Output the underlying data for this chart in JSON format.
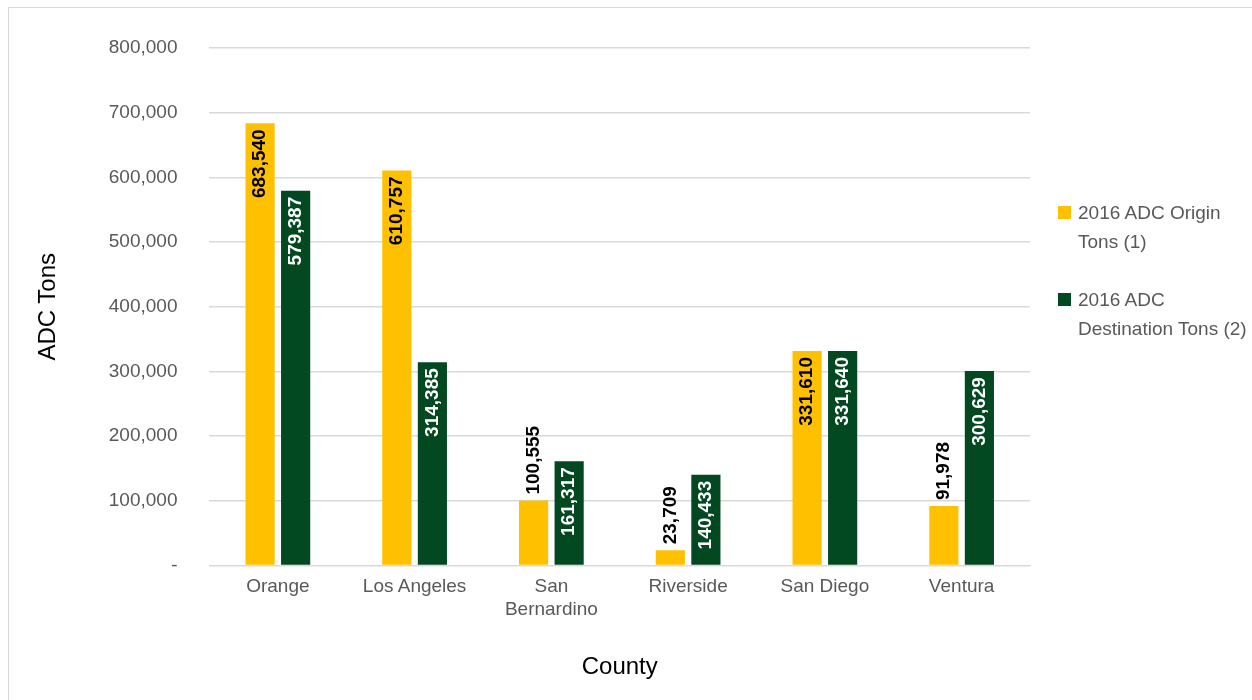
{
  "chart_data": {
    "type": "bar",
    "xlabel": "County",
    "ylabel": "ADC Tons",
    "categories": [
      "Orange",
      "Los Angeles",
      "San Bernardino",
      "Riverside",
      "San Diego",
      "Ventura"
    ],
    "series": [
      {
        "name": "2016 ADC Origin Tons (1)",
        "color": "#ffc000",
        "values": [
          683540,
          610757,
          100555,
          23709,
          331610,
          91978
        ],
        "value_labels": [
          "683,540",
          "610,757",
          "100,555",
          "23,709",
          "331,610",
          "91,978"
        ]
      },
      {
        "name": "2016 ADC Destination Tons (2)",
        "color": "#024820",
        "values": [
          579387,
          314385,
          161317,
          140433,
          331640,
          300629
        ],
        "value_labels": [
          "579,387",
          "314,385",
          "161,317",
          "140,433",
          "331,640",
          "300,629"
        ]
      }
    ],
    "ylim": [
      0,
      800000
    ],
    "yticks": [
      {
        "value": 0,
        "label": "-"
      },
      {
        "value": 100000,
        "label": "100,000"
      },
      {
        "value": 200000,
        "label": "200,000"
      },
      {
        "value": 300000,
        "label": "300,000"
      },
      {
        "value": 400000,
        "label": "400,000"
      },
      {
        "value": 500000,
        "label": "500,000"
      },
      {
        "value": 600000,
        "label": "600,000"
      },
      {
        "value": 700000,
        "label": "700,000"
      },
      {
        "value": 800000,
        "label": "800,000"
      }
    ],
    "grid": "y",
    "legend": "right"
  }
}
